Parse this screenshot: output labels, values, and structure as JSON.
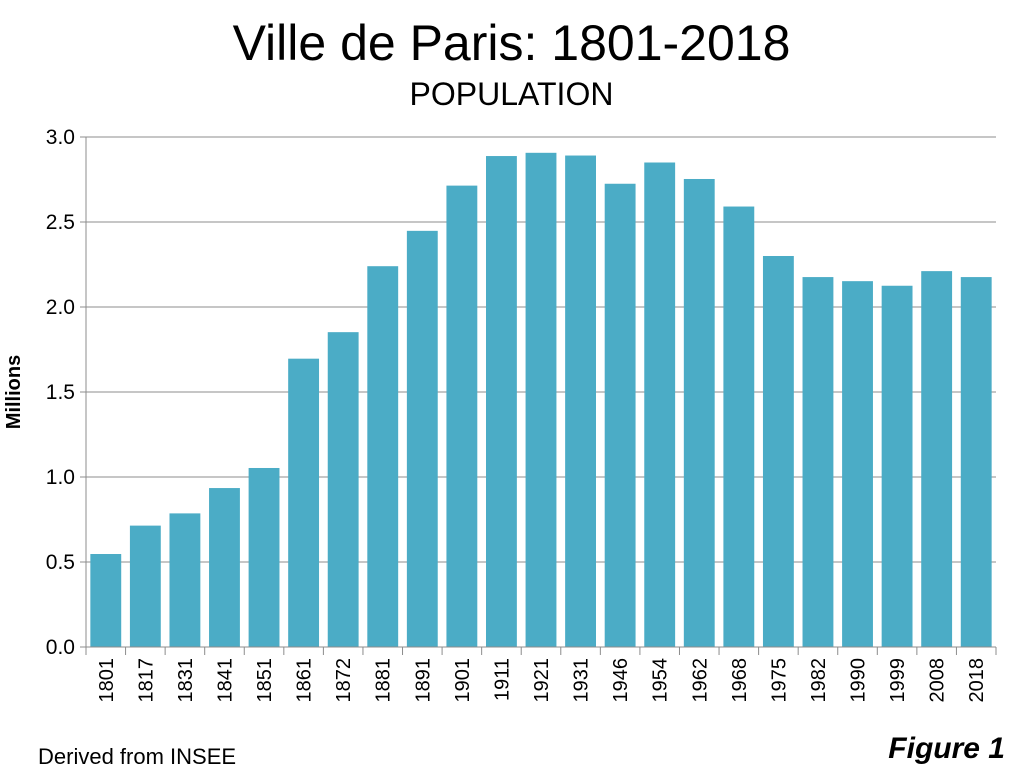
{
  "chart_data": {
    "type": "bar",
    "title": "Ville de Paris: 1801-2018",
    "subtitle": "POPULATION",
    "xlabel": "",
    "ylabel": "Millions",
    "ylim": [
      0,
      3.0
    ],
    "yticks": [
      "0.0",
      "0.5",
      "1.0",
      "1.5",
      "2.0",
      "2.5",
      "3.0"
    ],
    "grid": true,
    "bar_color": "#4BACC6",
    "categories": [
      "1801",
      "1817",
      "1831",
      "1841",
      "1851",
      "1861",
      "1872",
      "1881",
      "1891",
      "1901",
      "1911",
      "1921",
      "1931",
      "1946",
      "1954",
      "1962",
      "1968",
      "1975",
      "1982",
      "1990",
      "1999",
      "2008",
      "2018"
    ],
    "values": [
      0.547,
      0.714,
      0.786,
      0.935,
      1.053,
      1.696,
      1.852,
      2.24,
      2.448,
      2.714,
      2.888,
      2.907,
      2.891,
      2.725,
      2.85,
      2.753,
      2.591,
      2.3,
      2.176,
      2.152,
      2.125,
      2.211,
      2.176
    ]
  },
  "footer": {
    "source": "Derived from INSEE",
    "figure_label": "Figure 1"
  }
}
